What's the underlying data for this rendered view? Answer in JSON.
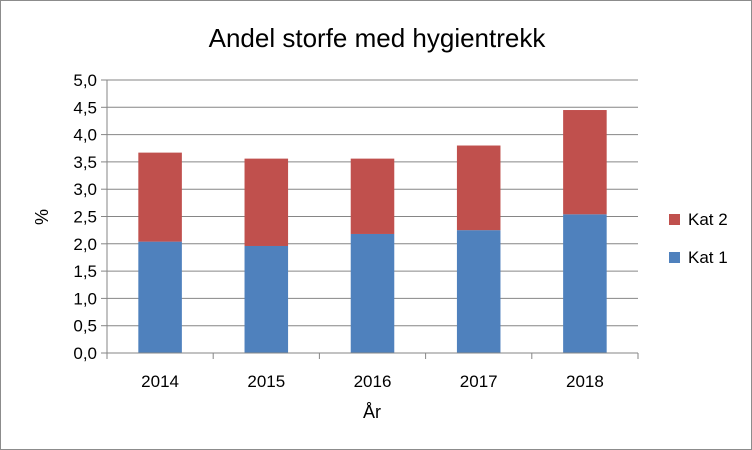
{
  "chart_data": {
    "type": "bar",
    "stacked": true,
    "title": "Andel storfe med hygientrekk",
    "xlabel": "År",
    "ylabel": "%",
    "categories": [
      "2014",
      "2015",
      "2016",
      "2017",
      "2018"
    ],
    "series": [
      {
        "name": "Kat 1",
        "color": "#4f81bd",
        "values": [
          2.04,
          1.96,
          2.18,
          2.25,
          2.54
        ]
      },
      {
        "name": "Kat 2",
        "color": "#c0504d",
        "values": [
          1.63,
          1.6,
          1.38,
          1.55,
          1.91
        ]
      }
    ],
    "ylim": [
      0,
      5
    ],
    "y_ticks": [
      "0,0",
      "0,5",
      "1,0",
      "1,5",
      "2,0",
      "2,5",
      "3,0",
      "3,5",
      "4,0",
      "4,5",
      "5,0"
    ],
    "grid": true,
    "gridline_color": "#868686",
    "legend_position": "right"
  }
}
